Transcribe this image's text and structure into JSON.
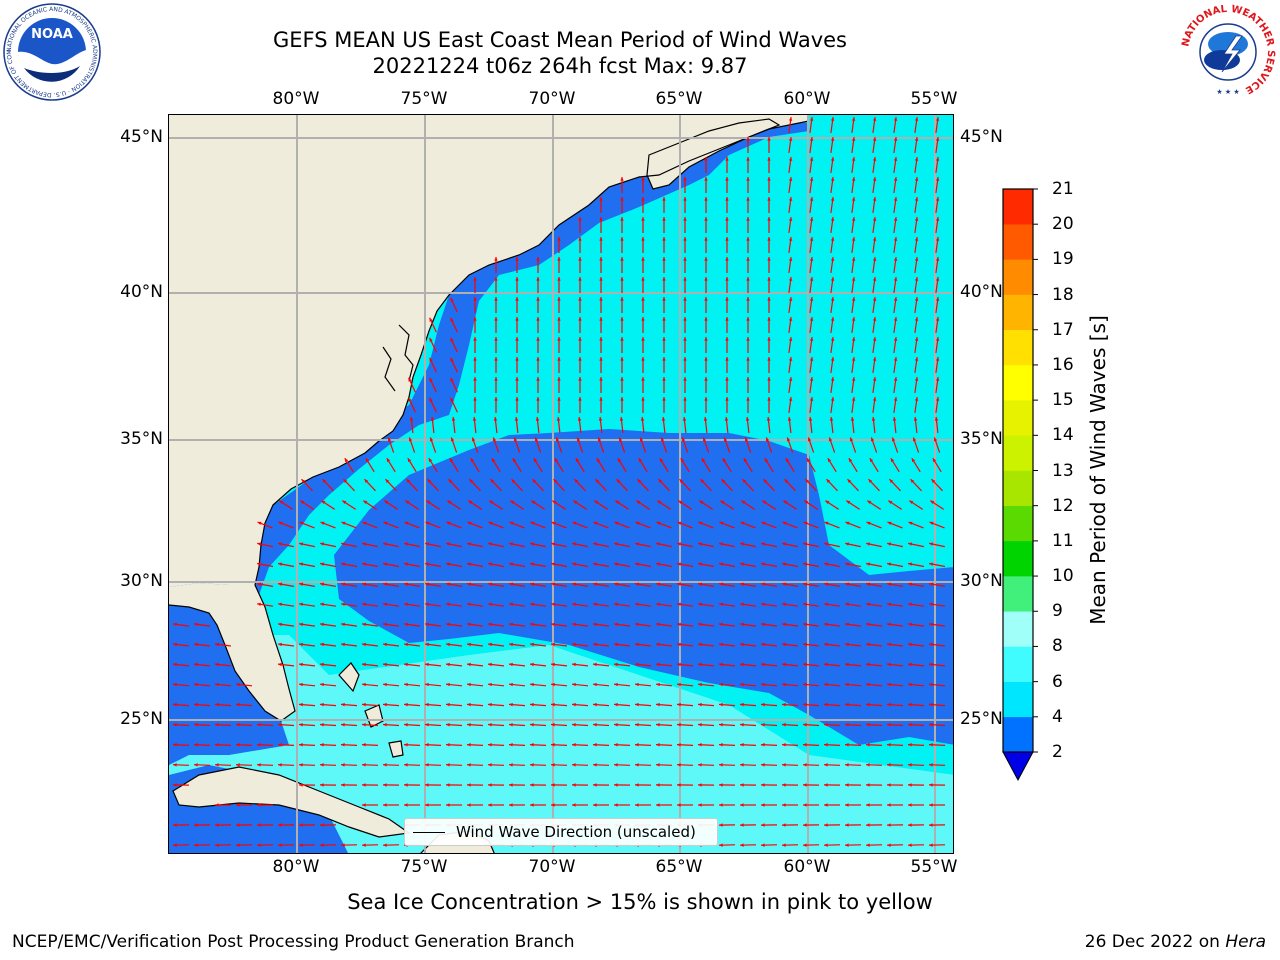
{
  "title_line1": "GEFS MEAN US East Coast Mean Period of Wind Waves",
  "title_line2": "20221224 t06z 264h fcst   Max: 9.87",
  "lon_labels": [
    "80°W",
    "75°W",
    "70°W",
    "65°W",
    "60°W",
    "55°W"
  ],
  "lat_labels": [
    "45°N",
    "40°N",
    "35°N",
    "30°N",
    "25°N"
  ],
  "legend_label": "Wind Wave Direction (unscaled)",
  "colorbar": {
    "label": "Mean Period of Wind Waves [s]",
    "ticks": [
      "2",
      "4",
      "6",
      "8",
      "9",
      "10",
      "11",
      "12",
      "13",
      "14",
      "15",
      "16",
      "17",
      "18",
      "19",
      "20",
      "21"
    ],
    "colors": [
      "#0072ff",
      "#00e6ff",
      "#40fcff",
      "#a0fff8",
      "#40f07a",
      "#00d400",
      "#5ada00",
      "#a8e600",
      "#ccf200",
      "#e6f200",
      "#ffff00",
      "#ffe000",
      "#ffb400",
      "#ff8c00",
      "#ff5a00",
      "#ff2a00"
    ],
    "under_color": "#0000e6"
  },
  "map_colors": {
    "land": "#efecdc",
    "deep": "#1f6ff0",
    "mid": "#00f2f2",
    "light": "#5ff8f8",
    "arrow": "#ff0000",
    "grid": "#b0b0b0"
  },
  "caption": "Sea Ice Concentration > 15% is shown in pink to yellow",
  "footer_left": "NCEP/EMC/Verification Post Processing Product Generation Branch",
  "footer_date": "26 Dec 2022 on ",
  "footer_host": "Hera",
  "logos": {
    "noaa_text": "NOAA",
    "noaa_ring_text": "NATIONAL OCEANIC AND ATMOSPHERIC ADMINISTRATION · U.S. DEPARTMENT OF COMMERCE",
    "nws_ring_text": "NATIONAL WEATHER SERVICE"
  }
}
